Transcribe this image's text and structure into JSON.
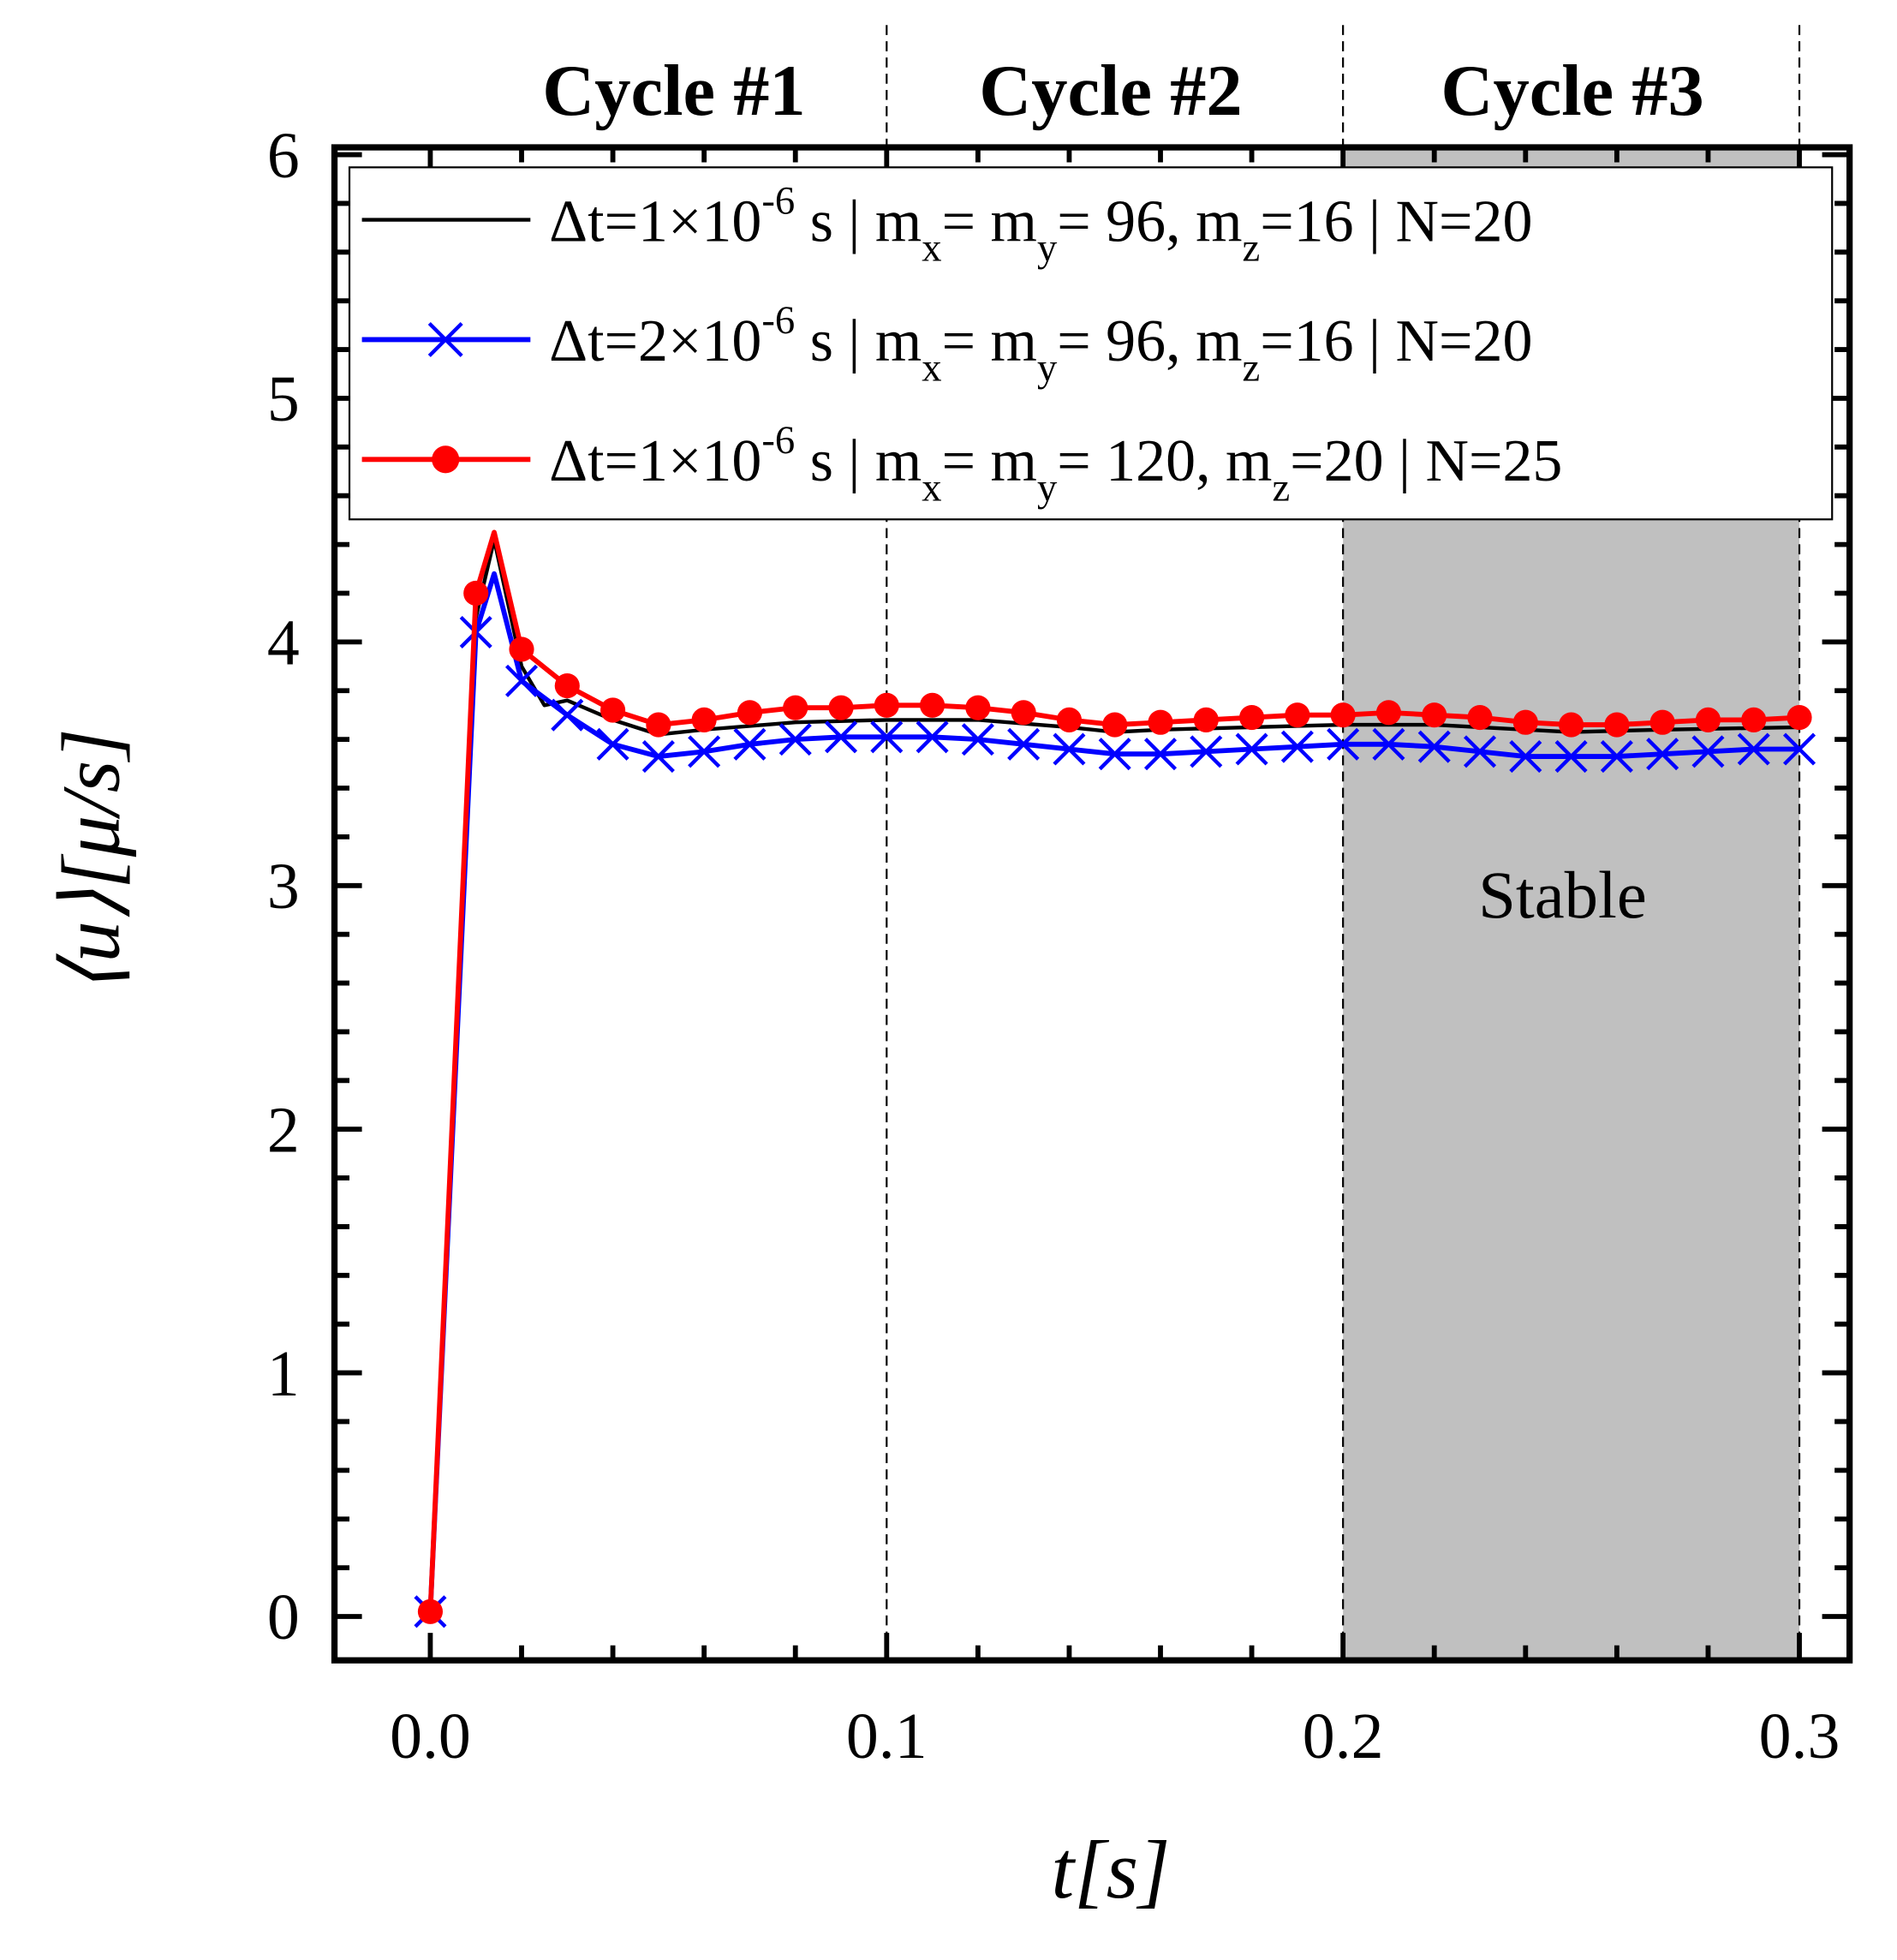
{
  "chart_data": {
    "type": "line",
    "title": "",
    "xlabel": "t[s]",
    "ylabel": "⟨u⟩[μ/s]",
    "xlim": [
      -0.021,
      0.311
    ],
    "ylim": [
      -0.18,
      6.03
    ],
    "xticks": [
      0.0,
      0.1,
      0.2,
      0.3
    ],
    "xtick_labels": [
      "0.0",
      "0.1",
      "0.2",
      "0.3"
    ],
    "yticks": [
      0,
      1,
      2,
      3,
      4,
      5,
      6
    ],
    "ytick_labels": [
      "0",
      "1",
      "2",
      "3",
      "4",
      "5",
      "6"
    ],
    "grid": false,
    "legend_placement": "top",
    "cycle_labels": [
      "Cycle #1",
      "Cycle #2",
      "Cycle #3"
    ],
    "cycle_boundaries": [
      0.1,
      0.2,
      0.3
    ],
    "shaded_region": {
      "x": [
        0.2,
        0.3
      ],
      "label": "Stable",
      "color": "#c0c0c0"
    },
    "series": [
      {
        "name": "dt1_m96_N20",
        "color": "#000000",
        "marker": "none",
        "legend": [
          {
            "t": "Δt=1×10"
          },
          {
            "t": "-6",
            "s": "sup"
          },
          {
            "t": " s | m"
          },
          {
            "t": "x",
            "s": "sub"
          },
          {
            "t": "= m"
          },
          {
            "t": "y",
            "s": "sub"
          },
          {
            "t": "= 96, m"
          },
          {
            "t": "z",
            "s": "sub"
          },
          {
            "t": "=16 | N=20"
          }
        ],
        "x": [
          0,
          0.01,
          0.014,
          0.02,
          0.025,
          0.03,
          0.04,
          0.05,
          0.06,
          0.08,
          0.1,
          0.12,
          0.14,
          0.15,
          0.16,
          0.18,
          0.2,
          0.22,
          0.25,
          0.27,
          0.3
        ],
        "y": [
          0.02,
          4.1,
          4.42,
          3.9,
          3.74,
          3.76,
          3.68,
          3.62,
          3.64,
          3.67,
          3.68,
          3.68,
          3.65,
          3.63,
          3.64,
          3.65,
          3.66,
          3.66,
          3.63,
          3.64,
          3.65
        ]
      },
      {
        "name": "dt2_m96_N20",
        "color": "#0000ff",
        "marker": "x",
        "legend": [
          {
            "t": "Δt=2×10"
          },
          {
            "t": "-6",
            "s": "sup"
          },
          {
            "t": " s | m"
          },
          {
            "t": "x",
            "s": "sub"
          },
          {
            "t": "= m"
          },
          {
            "t": "y",
            "s": "sub"
          },
          {
            "t": "= 96, m"
          },
          {
            "t": "z",
            "s": "sub"
          },
          {
            "t": "=16  | N=20"
          }
        ],
        "x": [
          0,
          0.01,
          0.014,
          0.02,
          0.03,
          0.04,
          0.05,
          0.06,
          0.07,
          0.08,
          0.09,
          0.1,
          0.11,
          0.12,
          0.13,
          0.14,
          0.15,
          0.16,
          0.17,
          0.18,
          0.19,
          0.2,
          0.21,
          0.22,
          0.23,
          0.24,
          0.25,
          0.26,
          0.27,
          0.28,
          0.29,
          0.3
        ],
        "y": [
          0.02,
          4.04,
          4.28,
          3.84,
          3.7,
          3.58,
          3.53,
          3.55,
          3.58,
          3.6,
          3.61,
          3.61,
          3.61,
          3.6,
          3.58,
          3.56,
          3.54,
          3.54,
          3.55,
          3.56,
          3.57,
          3.58,
          3.58,
          3.57,
          3.55,
          3.53,
          3.53,
          3.53,
          3.54,
          3.55,
          3.56,
          3.56
        ]
      },
      {
        "name": "dt1_m120_N25",
        "color": "#ff0000",
        "marker": "circle",
        "legend": [
          {
            "t": "Δt=1×10"
          },
          {
            "t": "-6",
            "s": "sup"
          },
          {
            "t": " s | m"
          },
          {
            "t": "x",
            "s": "sub"
          },
          {
            "t": "= m"
          },
          {
            "t": "y",
            "s": "sub"
          },
          {
            "t": "= 120, m"
          },
          {
            "t": "z",
            "s": "sub"
          },
          {
            "t": "=20  | N=25"
          }
        ],
        "x": [
          0,
          0.01,
          0.014,
          0.02,
          0.03,
          0.04,
          0.05,
          0.06,
          0.07,
          0.08,
          0.09,
          0.1,
          0.11,
          0.12,
          0.13,
          0.14,
          0.15,
          0.16,
          0.17,
          0.18,
          0.19,
          0.2,
          0.21,
          0.22,
          0.23,
          0.24,
          0.25,
          0.26,
          0.27,
          0.28,
          0.29,
          0.3
        ],
        "y": [
          0.02,
          4.2,
          4.45,
          3.97,
          3.82,
          3.72,
          3.66,
          3.68,
          3.71,
          3.73,
          3.73,
          3.74,
          3.74,
          3.73,
          3.71,
          3.68,
          3.66,
          3.67,
          3.68,
          3.69,
          3.7,
          3.7,
          3.71,
          3.7,
          3.69,
          3.67,
          3.66,
          3.66,
          3.67,
          3.68,
          3.68,
          3.69
        ]
      }
    ]
  }
}
